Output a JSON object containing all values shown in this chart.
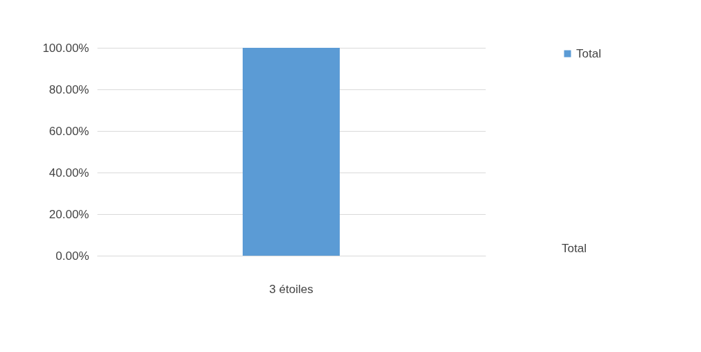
{
  "chart_data": {
    "type": "bar",
    "categories": [
      "3 étoiles"
    ],
    "series": [
      {
        "name": "Total",
        "color": "#5b9bd5",
        "values": [
          100
        ]
      }
    ],
    "ylim": [
      0,
      100
    ],
    "yticks": [
      {
        "value": 0,
        "label": "0.00%"
      },
      {
        "value": 20,
        "label": "20.00%"
      },
      {
        "value": 40,
        "label": "40.00%"
      },
      {
        "value": 60,
        "label": "60.00%"
      },
      {
        "value": 80,
        "label": "80.00%"
      },
      {
        "value": 100,
        "label": "100.00%"
      }
    ],
    "annotations": [
      "Total"
    ],
    "grid": true,
    "legend": "right"
  }
}
